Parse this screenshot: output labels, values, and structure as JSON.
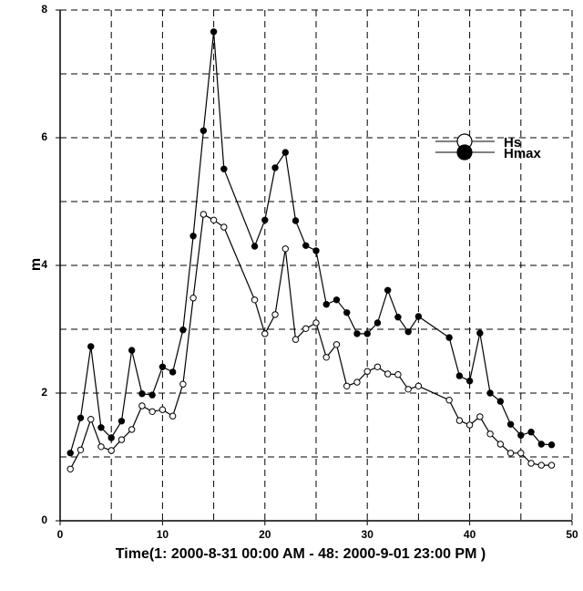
{
  "chart_data": {
    "type": "line",
    "xlabel": "Time(1: 2000-8-31 00:00 AM  - 48: 2000-9-01 23:00 PM )",
    "ylabel": "m",
    "x": [
      1,
      2,
      3,
      4,
      5,
      6,
      7,
      8,
      9,
      10,
      11,
      12,
      13,
      14,
      15,
      16,
      19,
      20,
      21,
      22,
      23,
      24,
      25,
      26,
      27,
      28,
      29,
      30,
      31,
      32,
      33,
      34,
      35,
      38,
      39,
      40,
      41,
      42,
      43,
      44,
      45,
      46,
      47,
      48
    ],
    "series": [
      {
        "name": "Hs",
        "color": "#000000",
        "marker": "open",
        "values": [
          0.81,
          1.11,
          1.59,
          1.16,
          1.1,
          1.27,
          1.43,
          1.8,
          1.71,
          1.74,
          1.64,
          2.14,
          3.49,
          4.8,
          4.71,
          4.6,
          3.46,
          2.93,
          3.23,
          4.26,
          2.84,
          3.01,
          3.1,
          2.56,
          2.76,
          2.11,
          2.17,
          2.34,
          2.41,
          2.3,
          2.29,
          2.06,
          2.11,
          1.89,
          1.57,
          1.5,
          1.63,
          1.36,
          1.2,
          1.06,
          1.06,
          0.9,
          0.87,
          0.87
        ]
      },
      {
        "name": "Hmax",
        "color": "#000000",
        "marker": "filled",
        "values": [
          1.06,
          1.61,
          2.73,
          1.46,
          1.3,
          1.56,
          2.67,
          1.99,
          1.97,
          2.41,
          2.33,
          2.99,
          4.46,
          6.11,
          7.66,
          5.51,
          4.3,
          4.71,
          5.53,
          5.77,
          4.7,
          4.31,
          4.23,
          3.39,
          3.46,
          3.26,
          2.93,
          2.93,
          3.1,
          3.61,
          3.19,
          2.96,
          3.2,
          2.87,
          2.27,
          2.19,
          2.94,
          2.0,
          1.87,
          1.51,
          1.34,
          1.39,
          1.2,
          1.19
        ]
      }
    ],
    "xlim": [
      0,
      50
    ],
    "xticks": [
      0,
      10,
      20,
      30,
      40,
      50
    ],
    "xminorticks": [
      5,
      15,
      25,
      35,
      45
    ],
    "ylim": [
      0,
      8
    ],
    "yticks": [
      0,
      2,
      4,
      6,
      8
    ],
    "yminorticks": [
      1,
      3,
      5,
      7
    ],
    "grid": true,
    "legend": "upper right"
  }
}
